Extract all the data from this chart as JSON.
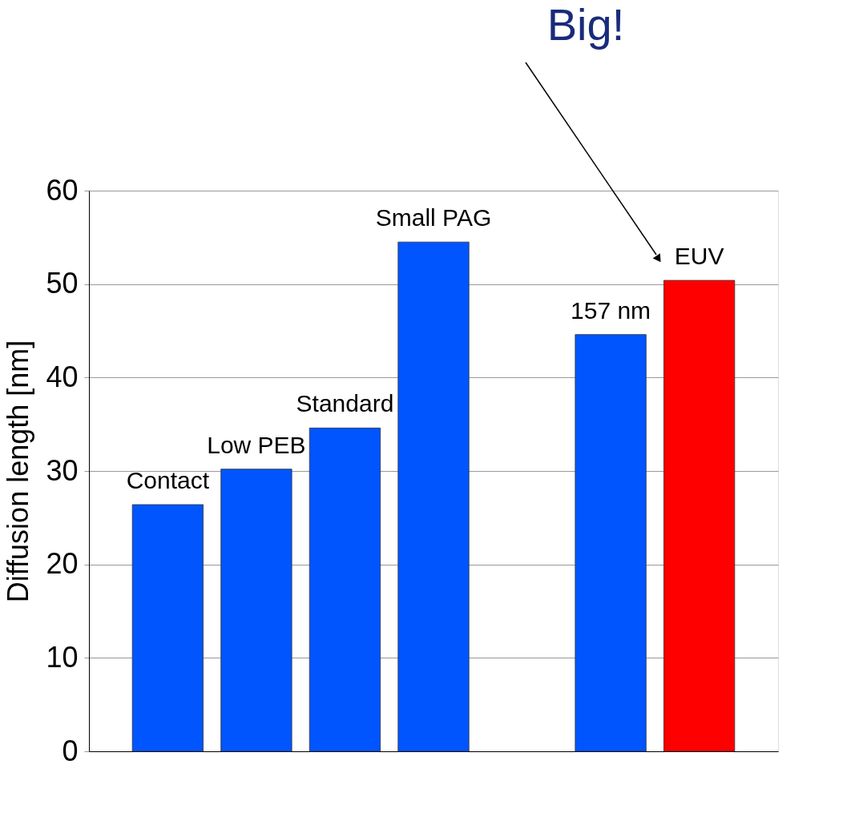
{
  "chart_data": {
    "type": "bar",
    "ylabel": "Diffusion length [nm]",
    "categories": [
      "Contact",
      "Low PEB",
      "Standard",
      "Small PAG",
      null,
      "157 nm",
      "EUV"
    ],
    "values": [
      26.4,
      30.2,
      34.6,
      54.5,
      null,
      44.6,
      50.4
    ],
    "colors": [
      "#0055ff",
      "#0055ff",
      "#0055ff",
      "#0055ff",
      "#0055ff",
      "#0055ff",
      "#ff0000"
    ],
    "ylim": [
      0,
      60
    ],
    "yticks": [
      0,
      10,
      20,
      30,
      40,
      50,
      60
    ],
    "grid": "y",
    "tick_labels": "y",
    "annotations": [
      "Big!"
    ]
  }
}
